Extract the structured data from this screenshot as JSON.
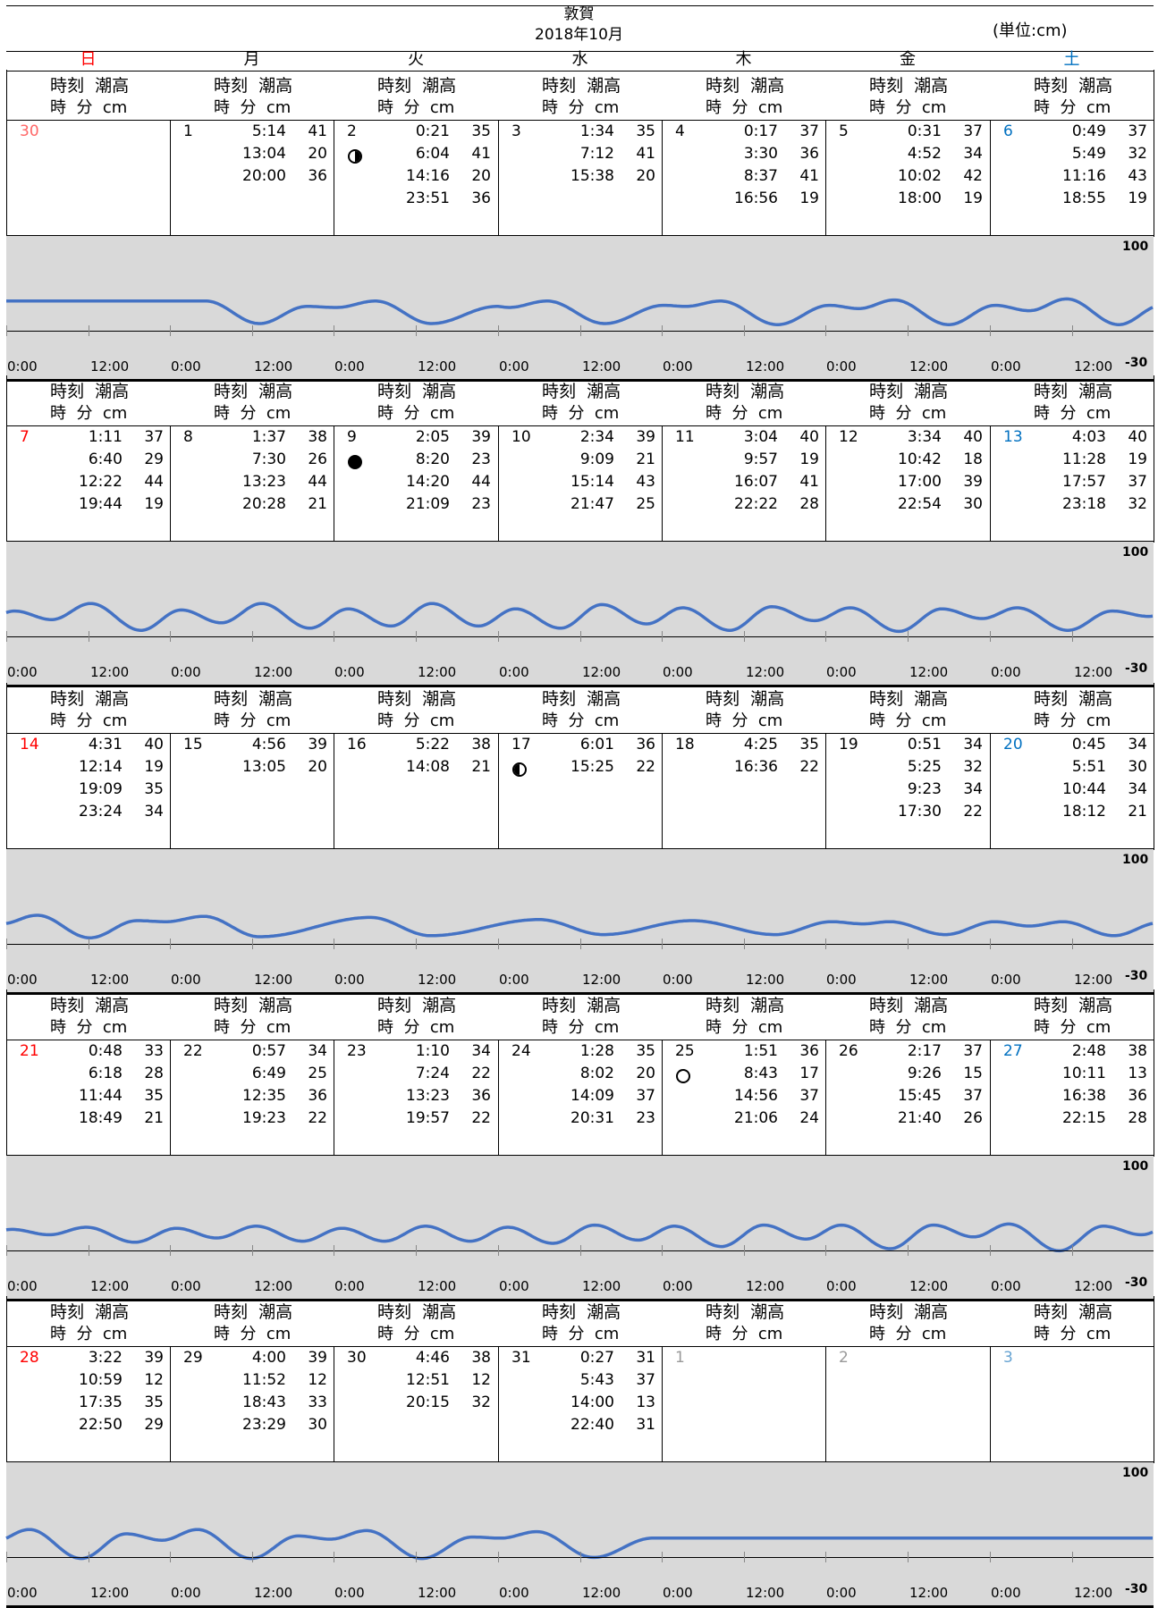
{
  "header": {
    "location": "敦賀",
    "month_label": "2018年10月",
    "unit": "(単位:cm)"
  },
  "weekdays": [
    {
      "label": "日",
      "color": "#ff0000"
    },
    {
      "label": "月",
      "color": "#000000"
    },
    {
      "label": "火",
      "color": "#000000"
    },
    {
      "label": "水",
      "color": "#000000"
    },
    {
      "label": "木",
      "color": "#000000"
    },
    {
      "label": "金",
      "color": "#000000"
    },
    {
      "label": "土",
      "color": "#0070c0"
    }
  ],
  "column_header": {
    "line1": "時刻  潮高",
    "line2": "時  分  cm"
  },
  "chart_data": {
    "type": "line",
    "ylim": [
      -30,
      100
    ],
    "y_labels": {
      "top": "100",
      "bottom": "-30"
    },
    "x_tick_labels": [
      "0:00",
      "12:00"
    ],
    "series_color": "#4472c4",
    "band_color": "#d9d9d9",
    "weeks": [
      [
        {
          "day": "30",
          "color": "#ff6666",
          "moon": null,
          "events": []
        },
        {
          "day": "1",
          "moon": null,
          "events": [
            [
              "5:14",
              "41"
            ],
            [
              "13:04",
              "20"
            ],
            [
              "20:00",
              "36"
            ]
          ]
        },
        {
          "day": "2",
          "moon": "first-quarter",
          "events": [
            [
              "0:21",
              "35"
            ],
            [
              "6:04",
              "41"
            ],
            [
              "14:16",
              "20"
            ],
            [
              "23:51",
              "36"
            ]
          ]
        },
        {
          "day": "3",
          "moon": null,
          "events": [
            [
              "1:34",
              "35"
            ],
            [
              "7:12",
              "41"
            ],
            [
              "15:38",
              "20"
            ]
          ]
        },
        {
          "day": "4",
          "moon": null,
          "events": [
            [
              "0:17",
              "37"
            ],
            [
              "3:30",
              "36"
            ],
            [
              "8:37",
              "41"
            ],
            [
              "16:56",
              "19"
            ]
          ]
        },
        {
          "day": "5",
          "moon": null,
          "events": [
            [
              "0:31",
              "37"
            ],
            [
              "4:52",
              "34"
            ],
            [
              "10:02",
              "42"
            ],
            [
              "18:00",
              "19"
            ]
          ]
        },
        {
          "day": "6",
          "color": "#0070c0",
          "moon": null,
          "events": [
            [
              "0:49",
              "37"
            ],
            [
              "5:49",
              "32"
            ],
            [
              "11:16",
              "43"
            ],
            [
              "18:55",
              "19"
            ]
          ]
        }
      ],
      [
        {
          "day": "7",
          "color": "#ff0000",
          "moon": null,
          "events": [
            [
              "1:11",
              "37"
            ],
            [
              "6:40",
              "29"
            ],
            [
              "12:22",
              "44"
            ],
            [
              "19:44",
              "19"
            ]
          ]
        },
        {
          "day": "8",
          "moon": null,
          "events": [
            [
              "1:37",
              "38"
            ],
            [
              "7:30",
              "26"
            ],
            [
              "13:23",
              "44"
            ],
            [
              "20:28",
              "21"
            ]
          ]
        },
        {
          "day": "9",
          "moon": "new",
          "events": [
            [
              "2:05",
              "39"
            ],
            [
              "8:20",
              "23"
            ],
            [
              "14:20",
              "44"
            ],
            [
              "21:09",
              "23"
            ]
          ]
        },
        {
          "day": "10",
          "moon": null,
          "events": [
            [
              "2:34",
              "39"
            ],
            [
              "9:09",
              "21"
            ],
            [
              "15:14",
              "43"
            ],
            [
              "21:47",
              "25"
            ]
          ]
        },
        {
          "day": "11",
          "moon": null,
          "events": [
            [
              "3:04",
              "40"
            ],
            [
              "9:57",
              "19"
            ],
            [
              "16:07",
              "41"
            ],
            [
              "22:22",
              "28"
            ]
          ]
        },
        {
          "day": "12",
          "moon": null,
          "events": [
            [
              "3:34",
              "40"
            ],
            [
              "10:42",
              "18"
            ],
            [
              "17:00",
              "39"
            ],
            [
              "22:54",
              "30"
            ]
          ]
        },
        {
          "day": "13",
          "color": "#0070c0",
          "moon": null,
          "events": [
            [
              "4:03",
              "40"
            ],
            [
              "11:28",
              "19"
            ],
            [
              "17:57",
              "37"
            ],
            [
              "23:18",
              "32"
            ]
          ]
        }
      ],
      [
        {
          "day": "14",
          "color": "#ff0000",
          "moon": null,
          "events": [
            [
              "4:31",
              "40"
            ],
            [
              "12:14",
              "19"
            ],
            [
              "19:09",
              "35"
            ],
            [
              "23:24",
              "34"
            ]
          ]
        },
        {
          "day": "15",
          "moon": null,
          "events": [
            [
              "4:56",
              "39"
            ],
            [
              "13:05",
              "20"
            ]
          ]
        },
        {
          "day": "16",
          "moon": null,
          "events": [
            [
              "5:22",
              "38"
            ],
            [
              "14:08",
              "21"
            ]
          ]
        },
        {
          "day": "17",
          "moon": "last-quarter",
          "events": [
            [
              "6:01",
              "36"
            ],
            [
              "15:25",
              "22"
            ]
          ]
        },
        {
          "day": "18",
          "moon": null,
          "events": [
            [
              "4:25",
              "35"
            ],
            [
              "16:36",
              "22"
            ]
          ]
        },
        {
          "day": "19",
          "moon": null,
          "events": [
            [
              "0:51",
              "34"
            ],
            [
              "5:25",
              "32"
            ],
            [
              "9:23",
              "34"
            ],
            [
              "17:30",
              "22"
            ]
          ]
        },
        {
          "day": "20",
          "color": "#0070c0",
          "moon": null,
          "events": [
            [
              "0:45",
              "34"
            ],
            [
              "5:51",
              "30"
            ],
            [
              "10:44",
              "34"
            ],
            [
              "18:12",
              "21"
            ]
          ]
        }
      ],
      [
        {
          "day": "21",
          "color": "#ff0000",
          "moon": null,
          "events": [
            [
              "0:48",
              "33"
            ],
            [
              "6:18",
              "28"
            ],
            [
              "11:44",
              "35"
            ],
            [
              "18:49",
              "21"
            ]
          ]
        },
        {
          "day": "22",
          "moon": null,
          "events": [
            [
              "0:57",
              "34"
            ],
            [
              "6:49",
              "25"
            ],
            [
              "12:35",
              "36"
            ],
            [
              "19:23",
              "22"
            ]
          ]
        },
        {
          "day": "23",
          "moon": null,
          "events": [
            [
              "1:10",
              "34"
            ],
            [
              "7:24",
              "22"
            ],
            [
              "13:23",
              "36"
            ],
            [
              "19:57",
              "22"
            ]
          ]
        },
        {
          "day": "24",
          "moon": null,
          "events": [
            [
              "1:28",
              "35"
            ],
            [
              "8:02",
              "20"
            ],
            [
              "14:09",
              "37"
            ],
            [
              "20:31",
              "23"
            ]
          ]
        },
        {
          "day": "25",
          "moon": "full",
          "events": [
            [
              "1:51",
              "36"
            ],
            [
              "8:43",
              "17"
            ],
            [
              "14:56",
              "37"
            ],
            [
              "21:06",
              "24"
            ]
          ]
        },
        {
          "day": "26",
          "moon": null,
          "events": [
            [
              "2:17",
              "37"
            ],
            [
              "9:26",
              "15"
            ],
            [
              "15:45",
              "37"
            ],
            [
              "21:40",
              "26"
            ]
          ]
        },
        {
          "day": "27",
          "color": "#0070c0",
          "moon": null,
          "events": [
            [
              "2:48",
              "38"
            ],
            [
              "10:11",
              "13"
            ],
            [
              "16:38",
              "36"
            ],
            [
              "22:15",
              "28"
            ]
          ]
        }
      ],
      [
        {
          "day": "28",
          "color": "#ff0000",
          "moon": null,
          "events": [
            [
              "3:22",
              "39"
            ],
            [
              "10:59",
              "12"
            ],
            [
              "17:35",
              "35"
            ],
            [
              "22:50",
              "29"
            ]
          ]
        },
        {
          "day": "29",
          "moon": null,
          "events": [
            [
              "4:00",
              "39"
            ],
            [
              "11:52",
              "12"
            ],
            [
              "18:43",
              "33"
            ],
            [
              "23:29",
              "30"
            ]
          ]
        },
        {
          "day": "30",
          "moon": null,
          "events": [
            [
              "4:46",
              "38"
            ],
            [
              "12:51",
              "12"
            ],
            [
              "20:15",
              "32"
            ]
          ]
        },
        {
          "day": "31",
          "moon": null,
          "events": [
            [
              "0:27",
              "31"
            ],
            [
              "5:43",
              "37"
            ],
            [
              "14:00",
              "13"
            ],
            [
              "22:40",
              "31"
            ]
          ]
        },
        {
          "day": "1",
          "color": "#999999",
          "moon": null,
          "events": []
        },
        {
          "day": "2",
          "color": "#999999",
          "moon": null,
          "events": []
        },
        {
          "day": "3",
          "color": "#66a3d2",
          "moon": null,
          "events": []
        }
      ]
    ]
  }
}
